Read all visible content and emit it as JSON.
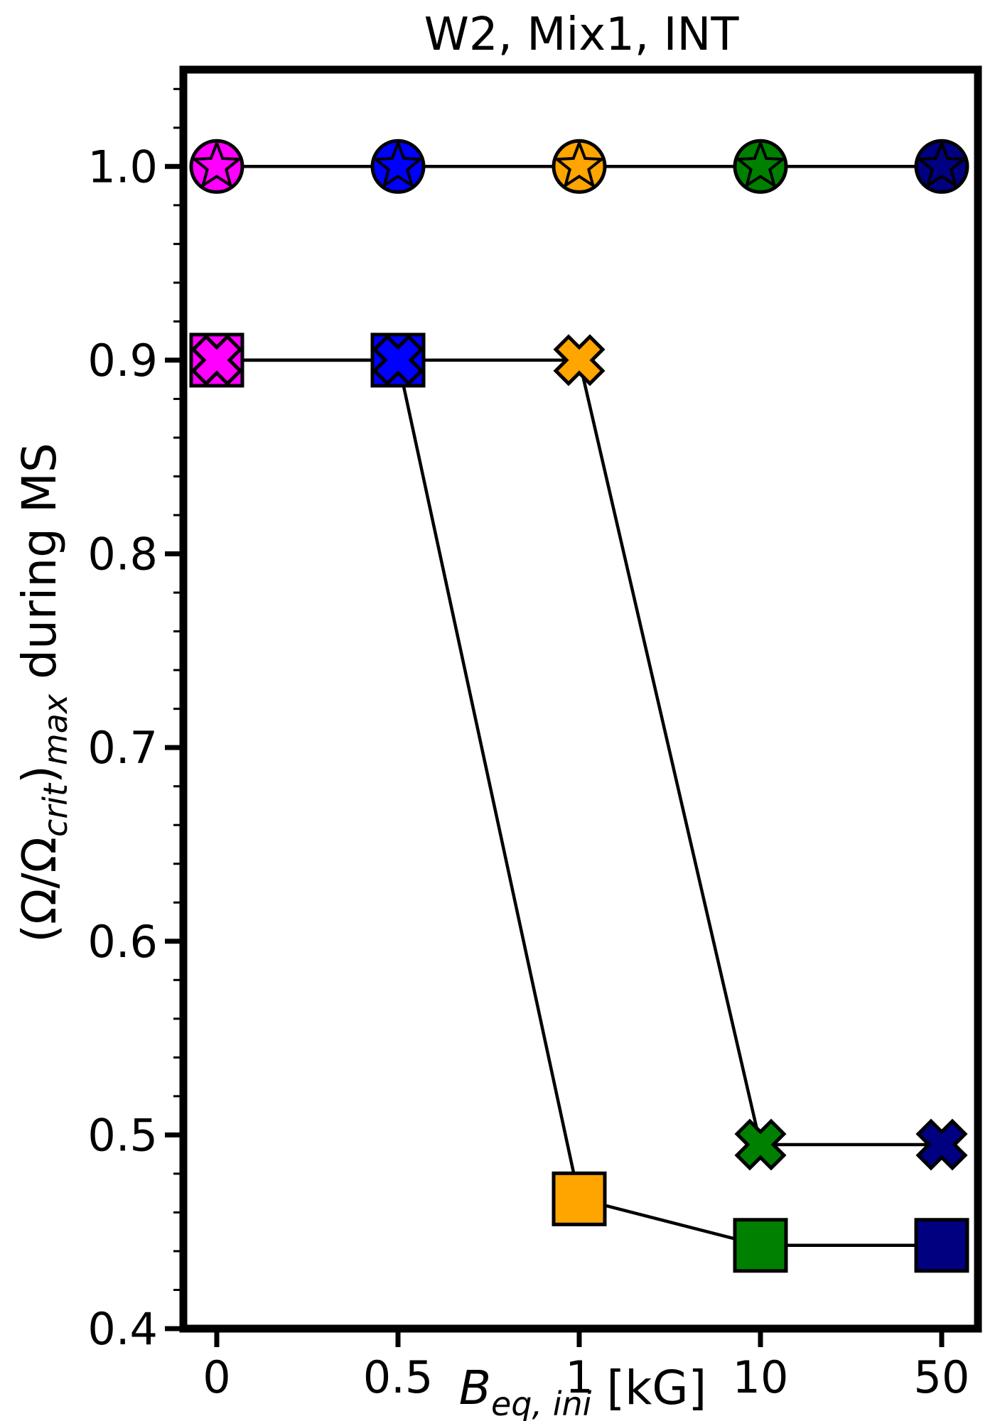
{
  "chart_data": {
    "type": "line",
    "title": "W2, Mix1, INT",
    "xlabel": {
      "main": "B",
      "sub": "eq, ini",
      "unit": "[kG]"
    },
    "ylabel": {
      "pre": "(Ω/Ω",
      "sub1": "crit",
      "mid": ")",
      "sub2": "max",
      "post": " during MS"
    },
    "categories": [
      "0",
      "0.5",
      "1",
      "10",
      "50"
    ],
    "ylim": [
      0.4,
      1.05
    ],
    "yticks": [
      "0.4",
      "0.5",
      "0.6",
      "0.7",
      "0.8",
      "0.9",
      "1.0"
    ],
    "grid": false,
    "point_colors": [
      "#ff00ff",
      "#0000ff",
      "#ffa500",
      "#008000",
      "#000080"
    ],
    "series": [
      {
        "marker": "circle-star",
        "points": [
          {
            "x": 0,
            "y": 1.0
          },
          {
            "x": 1,
            "y": 1.0
          },
          {
            "x": 2,
            "y": 1.0
          },
          {
            "x": 3,
            "y": 1.0
          },
          {
            "x": 4,
            "y": 1.0
          }
        ]
      },
      {
        "marker": "cross",
        "points": [
          {
            "x": 0,
            "y": 0.9
          },
          {
            "x": 1,
            "y": 0.9
          },
          {
            "x": 2,
            "y": 0.9
          },
          {
            "x": 3,
            "y": 0.495
          },
          {
            "x": 4,
            "y": 0.495
          }
        ]
      },
      {
        "marker": "square",
        "points": [
          {
            "x": 0,
            "y": 0.9
          },
          {
            "x": 1,
            "y": 0.9
          },
          {
            "x": 2,
            "y": 0.467
          },
          {
            "x": 3,
            "y": 0.443
          },
          {
            "x": 4,
            "y": 0.443
          }
        ]
      }
    ]
  }
}
